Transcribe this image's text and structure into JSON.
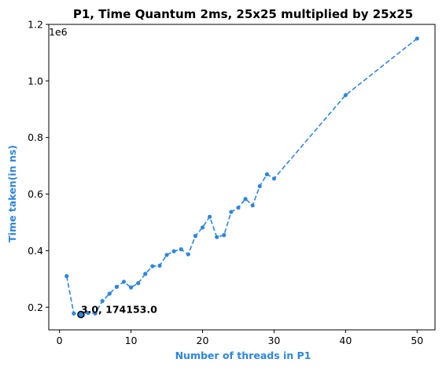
{
  "chart_data": {
    "type": "line",
    "title": "P1, Time Quantum 2ms, 25x25 multiplied by 25x25",
    "xlabel": "Number of threads in P1",
    "ylabel": "Time taken(in ns)",
    "y_offset_label": "1e6",
    "xlim": [
      -1.5,
      52.5
    ],
    "ylim": [
      120000,
      1200000
    ],
    "x_ticks": [
      0,
      10,
      20,
      30,
      40,
      50
    ],
    "x_tick_labels": [
      "0",
      "10",
      "20",
      "30",
      "40",
      "50"
    ],
    "y_ticks": [
      200000,
      400000,
      600000,
      800000,
      1000000,
      1200000
    ],
    "y_tick_labels": [
      "0.2",
      "0.4",
      "0.6",
      "0.8",
      "1.0",
      "1.2"
    ],
    "grid": false,
    "line_style": "dashed",
    "color": "#2e86de",
    "series": [
      {
        "x": [
          1,
          2,
          3,
          4,
          5,
          6,
          7,
          8,
          9,
          10,
          11,
          12,
          13,
          14,
          15,
          16,
          17,
          18,
          19,
          20,
          21,
          22,
          23,
          24,
          25,
          26,
          27,
          28,
          29,
          30,
          40,
          50
        ],
        "values": [
          310000,
          178000,
          174153,
          180000,
          178000,
          222000,
          248000,
          272000,
          290000,
          270000,
          285000,
          318000,
          345000,
          347000,
          385000,
          398000,
          405000,
          387000,
          452000,
          482000,
          520000,
          448000,
          455000,
          537000,
          552000,
          583000,
          560000,
          628000,
          670000,
          655000,
          950000,
          1150000
        ]
      }
    ],
    "highlight": {
      "x": 3,
      "y": 174153,
      "label": "3.0, 174153.0"
    }
  }
}
